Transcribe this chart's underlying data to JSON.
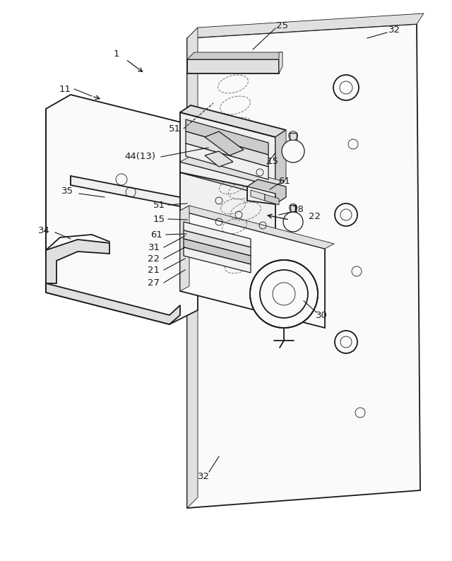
{
  "bg_color": "#ffffff",
  "lc": "#1a1a1a",
  "fig_width": 6.4,
  "fig_height": 7.94,
  "dpi": 100,
  "lw_main": 1.3,
  "lw_med": 0.9,
  "lw_thin": 0.6,
  "fc_light": "#f0f0f0",
  "fc_mid": "#e0e0e0",
  "fc_dark": "#cccccc",
  "fc_white": "#fafafa"
}
